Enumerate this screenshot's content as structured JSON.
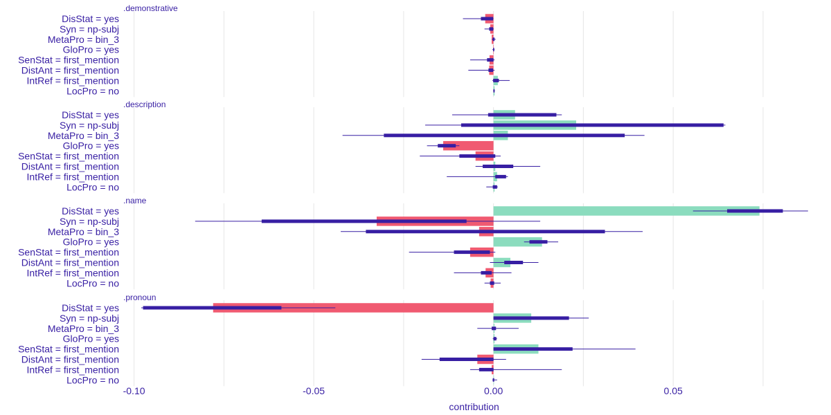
{
  "chart_data": {
    "type": "bar",
    "title": "",
    "xlabel": "contribution",
    "ylabel": "",
    "xlim": [
      -0.103,
      0.0885
    ],
    "xticks": [
      -0.1,
      -0.05,
      0.0,
      0.05
    ],
    "xtick_labels": [
      "-0.10",
      "-0.05",
      "0.00",
      "0.05"
    ],
    "grid": true,
    "categories": [
      "DisStat = yes",
      "Syn = np-subj",
      "MetaPro = bin_3",
      "GloPro = yes",
      "SenStat = first_mention",
      "DistAnt = first_mention",
      "IntRef = first_mention",
      "LocPro = no"
    ],
    "panels": [
      {
        "name": ".demonstrative",
        "values": [
          -0.0023,
          -0.0009,
          -0.0005,
          -0.0001,
          -0.0011,
          -0.0012,
          0.0012,
          0.0003
        ],
        "box_low": [
          -0.0035,
          -0.0012,
          -0.0002,
          -0.0001,
          -0.0018,
          -0.0014,
          -0.0001,
          0.0
        ],
        "box_high": [
          -0.0001,
          -0.0001,
          0.0003,
          0.0002,
          0.0,
          -0.0001,
          0.0015,
          0.0002
        ],
        "whisker_low": [
          -0.0085,
          -0.0025,
          -0.0005,
          -0.0003,
          -0.0065,
          -0.007,
          -0.0003,
          -0.0001
        ],
        "whisker_high": [
          0.0,
          0.0001,
          0.0006,
          0.0003,
          0.0003,
          0.0003,
          0.0045,
          0.0004
        ]
      },
      {
        "name": ".description",
        "values": [
          0.006,
          0.023,
          0.004,
          -0.014,
          -0.005,
          0.0005,
          0.001,
          0.0003
        ],
        "box_low": [
          -0.0015,
          -0.009,
          -0.0305,
          -0.0155,
          -0.0095,
          -0.003,
          0.0005,
          -0.0002
        ],
        "box_high": [
          0.0175,
          0.064,
          0.0365,
          -0.0105,
          0.0005,
          0.0055,
          0.0035,
          0.001
        ],
        "whisker_low": [
          -0.0115,
          -0.019,
          -0.042,
          -0.0185,
          -0.0205,
          -0.005,
          -0.013,
          -0.002
        ],
        "whisker_high": [
          0.019,
          0.0645,
          0.042,
          -0.0095,
          0.002,
          0.013,
          0.004,
          0.0012
        ]
      },
      {
        "name": ".name",
        "values": [
          0.074,
          -0.0325,
          -0.004,
          0.0135,
          -0.0065,
          0.0047,
          -0.0022,
          -0.0008
        ],
        "box_low": [
          0.065,
          -0.0645,
          -0.0355,
          0.01,
          -0.011,
          0.003,
          -0.0035,
          -0.001
        ],
        "box_high": [
          0.0805,
          -0.0075,
          0.031,
          0.015,
          -0.001,
          0.0082,
          -0.0005,
          0.0002
        ],
        "whisker_low": [
          0.0555,
          -0.083,
          -0.0425,
          0.0085,
          -0.0235,
          -0.001,
          -0.011,
          -0.0025
        ],
        "whisker_high": [
          0.0875,
          0.013,
          0.0415,
          0.018,
          0.0005,
          0.0125,
          0.005,
          0.002
        ]
      },
      {
        "name": ".pronoun",
        "values": [
          -0.078,
          0.0105,
          0.0003,
          0.0003,
          0.0125,
          -0.0045,
          -0.0005,
          0.0
        ],
        "box_low": [
          -0.0975,
          0.0,
          -0.0005,
          0.0,
          0.0,
          -0.015,
          -0.004,
          -0.0002
        ],
        "box_high": [
          -0.059,
          0.021,
          0.0007,
          0.0008,
          0.022,
          0.0,
          0.0,
          0.0002
        ],
        "whisker_low": [
          -0.098,
          0.0,
          -0.0045,
          -0.0002,
          0.0,
          -0.02,
          -0.0065,
          -0.0003
        ],
        "whisker_high": [
          -0.044,
          0.0265,
          0.007,
          0.001,
          0.0395,
          0.0035,
          0.019,
          0.001
        ]
      }
    ],
    "colors": {
      "positive": "#8BDCBE",
      "negative": "#F05A71",
      "interval": "#371EA3",
      "text": "#371EA3",
      "grid": "#e6e6e6"
    }
  }
}
